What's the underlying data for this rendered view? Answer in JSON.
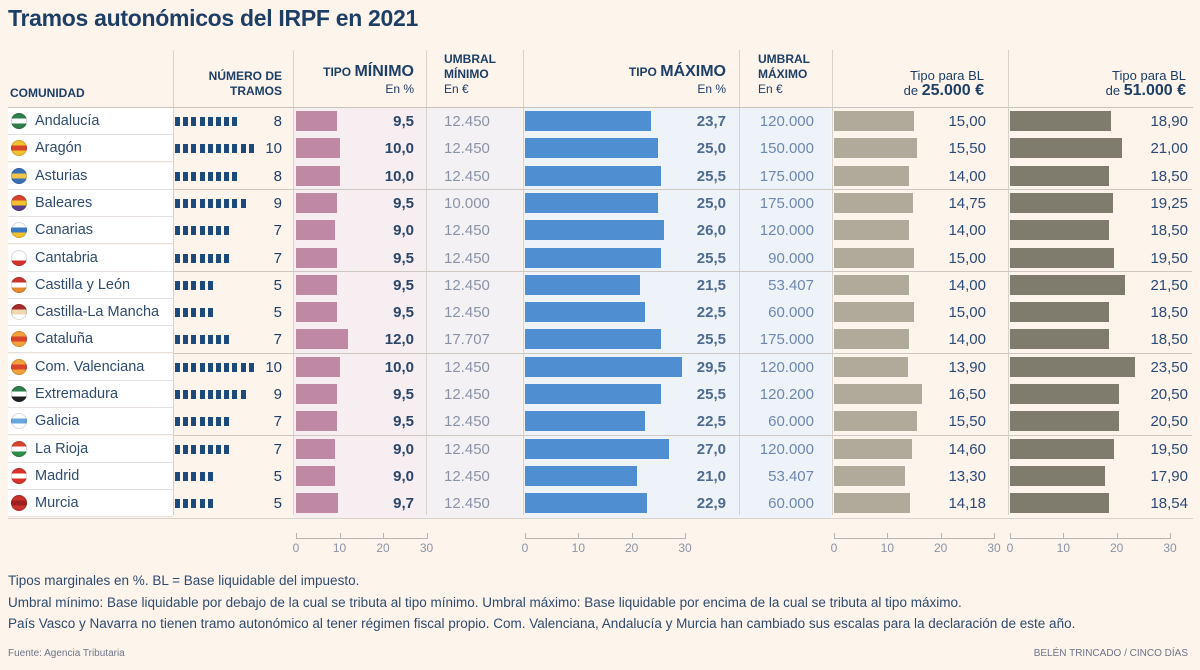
{
  "title": "Tramos autonómicos del IRPF en 2021",
  "headers": {
    "comunidad": "COMUNIDAD",
    "tramos_line1": "NÚMERO DE",
    "tramos_line2": "TRAMOS",
    "tipo_min_small": "TIPO ",
    "tipo_min_big": "MÍNIMO",
    "tipo_min_unit": "En %",
    "umbral_min_line1": "UMBRAL",
    "umbral_min_line2": "MÍNIMO",
    "umbral_min_unit": "En €",
    "tipo_max_small": "TIPO ",
    "tipo_max_big": "MÁXIMO",
    "tipo_max_unit": "En %",
    "umbral_max_line1": "UMBRAL",
    "umbral_max_line2": "MÁXIMO",
    "umbral_max_unit": "En €",
    "bl25_line1": "Tipo para BL",
    "bl25_small": "de ",
    "bl25_big": "25.000 €",
    "bl51_line1": "Tipo para BL",
    "bl51_small": "de ",
    "bl51_big": "51.000 €"
  },
  "colors": {
    "tramos": "#1d4a7c",
    "tipo_min": "#bf89a3",
    "tipo_max": "#4f8ed0",
    "bl25": "#b0aa9b",
    "bl51": "#7f7b6d"
  },
  "chart_data": {
    "type": "table",
    "title": "Tramos autonómicos del IRPF en 2021",
    "columns": [
      "Comunidad",
      "Número de tramos",
      "Tipo mínimo (%)",
      "Umbral mínimo (€)",
      "Tipo máximo (%)",
      "Umbral máximo (€)",
      "Tipo para BL de 25.000 €",
      "Tipo para BL de 51.000 €"
    ],
    "axis_ticks": [
      "0",
      "10",
      "20",
      "30"
    ],
    "axis_range": [
      0,
      30
    ],
    "rows": [
      {
        "comunidad": "Andalucía",
        "flag": "andalucia-flag-icon",
        "tramos": 8,
        "tipo_min": "9,5",
        "tipo_min_v": 9.5,
        "umbral_min": "12.450",
        "tipo_max": "23,7",
        "tipo_max_v": 23.7,
        "umbral_max": "120.000",
        "bl25": "15,00",
        "bl25_v": 15.0,
        "bl51": "18,90",
        "bl51_v": 18.9
      },
      {
        "comunidad": "Aragón",
        "flag": "aragon-flag-icon",
        "tramos": 10,
        "tipo_min": "10,0",
        "tipo_min_v": 10.0,
        "umbral_min": "12.450",
        "tipo_max": "25,0",
        "tipo_max_v": 25.0,
        "umbral_max": "150.000",
        "bl25": "15,50",
        "bl25_v": 15.5,
        "bl51": "21,00",
        "bl51_v": 21.0
      },
      {
        "comunidad": "Asturias",
        "flag": "asturias-flag-icon",
        "tramos": 8,
        "tipo_min": "10,0",
        "tipo_min_v": 10.0,
        "umbral_min": "12.450",
        "tipo_max": "25,5",
        "tipo_max_v": 25.5,
        "umbral_max": "175.000",
        "bl25": "14,00",
        "bl25_v": 14.0,
        "bl51": "18,50",
        "bl51_v": 18.5
      },
      {
        "comunidad": "Baleares",
        "flag": "baleares-flag-icon",
        "tramos": 9,
        "tipo_min": "9,5",
        "tipo_min_v": 9.5,
        "umbral_min": "10.000",
        "tipo_max": "25,0",
        "tipo_max_v": 25.0,
        "umbral_max": "175.000",
        "bl25": "14,75",
        "bl25_v": 14.75,
        "bl51": "19,25",
        "bl51_v": 19.25
      },
      {
        "comunidad": "Canarias",
        "flag": "canarias-flag-icon",
        "tramos": 7,
        "tipo_min": "9,0",
        "tipo_min_v": 9.0,
        "umbral_min": "12.450",
        "tipo_max": "26,0",
        "tipo_max_v": 26.0,
        "umbral_max": "120.000",
        "bl25": "14,00",
        "bl25_v": 14.0,
        "bl51": "18,50",
        "bl51_v": 18.5
      },
      {
        "comunidad": "Cantabria",
        "flag": "cantabria-flag-icon",
        "tramos": 7,
        "tipo_min": "9,5",
        "tipo_min_v": 9.5,
        "umbral_min": "12.450",
        "tipo_max": "25,5",
        "tipo_max_v": 25.5,
        "umbral_max": "90.000",
        "bl25": "15,00",
        "bl25_v": 15.0,
        "bl51": "19,50",
        "bl51_v": 19.5
      },
      {
        "comunidad": "Castilla y León",
        "flag": "castilla-leon-flag-icon",
        "tramos": 5,
        "tipo_min": "9,5",
        "tipo_min_v": 9.5,
        "umbral_min": "12.450",
        "tipo_max": "21,5",
        "tipo_max_v": 21.5,
        "umbral_max": "53.407",
        "bl25": "14,00",
        "bl25_v": 14.0,
        "bl51": "21,50",
        "bl51_v": 21.5
      },
      {
        "comunidad": "Castilla-La Mancha",
        "flag": "castilla-la-mancha-flag-icon",
        "tramos": 5,
        "tipo_min": "9,5",
        "tipo_min_v": 9.5,
        "umbral_min": "12.450",
        "tipo_max": "22,5",
        "tipo_max_v": 22.5,
        "umbral_max": "60.000",
        "bl25": "15,00",
        "bl25_v": 15.0,
        "bl51": "18,50",
        "bl51_v": 18.5
      },
      {
        "comunidad": "Cataluña",
        "flag": "cataluna-flag-icon",
        "tramos": 7,
        "tipo_min": "12,0",
        "tipo_min_v": 12.0,
        "umbral_min": "17.707",
        "tipo_max": "25,5",
        "tipo_max_v": 25.5,
        "umbral_max": "175.000",
        "bl25": "14,00",
        "bl25_v": 14.0,
        "bl51": "18,50",
        "bl51_v": 18.5
      },
      {
        "comunidad": "Com. Valenciana",
        "flag": "valenciana-flag-icon",
        "tramos": 10,
        "tipo_min": "10,0",
        "tipo_min_v": 10.0,
        "umbral_min": "12.450",
        "tipo_max": "29,5",
        "tipo_max_v": 29.5,
        "umbral_max": "120.000",
        "bl25": "13,90",
        "bl25_v": 13.9,
        "bl51": "23,50",
        "bl51_v": 23.5
      },
      {
        "comunidad": "Extremadura",
        "flag": "extremadura-flag-icon",
        "tramos": 9,
        "tipo_min": "9,5",
        "tipo_min_v": 9.5,
        "umbral_min": "12.450",
        "tipo_max": "25,5",
        "tipo_max_v": 25.5,
        "umbral_max": "120.200",
        "bl25": "16,50",
        "bl25_v": 16.5,
        "bl51": "20,50",
        "bl51_v": 20.5
      },
      {
        "comunidad": "Galicia",
        "flag": "galicia-flag-icon",
        "tramos": 7,
        "tipo_min": "9,5",
        "tipo_min_v": 9.5,
        "umbral_min": "12.450",
        "tipo_max": "22,5",
        "tipo_max_v": 22.5,
        "umbral_max": "60.000",
        "bl25": "15,50",
        "bl25_v": 15.5,
        "bl51": "20,50",
        "bl51_v": 20.5
      },
      {
        "comunidad": "La Rioja",
        "flag": "la-rioja-flag-icon",
        "tramos": 7,
        "tipo_min": "9,0",
        "tipo_min_v": 9.0,
        "umbral_min": "12.450",
        "tipo_max": "27,0",
        "tipo_max_v": 27.0,
        "umbral_max": "120.000",
        "bl25": "14,60",
        "bl25_v": 14.6,
        "bl51": "19,50",
        "bl51_v": 19.5
      },
      {
        "comunidad": "Madrid",
        "flag": "madrid-flag-icon",
        "tramos": 5,
        "tipo_min": "9,0",
        "tipo_min_v": 9.0,
        "umbral_min": "12.450",
        "tipo_max": "21,0",
        "tipo_max_v": 21.0,
        "umbral_max": "53.407",
        "bl25": "13,30",
        "bl25_v": 13.3,
        "bl51": "17,90",
        "bl51_v": 17.9
      },
      {
        "comunidad": "Murcia",
        "flag": "murcia-flag-icon",
        "tramos": 5,
        "tipo_min": "9,7",
        "tipo_min_v": 9.7,
        "umbral_min": "12.450",
        "tipo_max": "22,9",
        "tipo_max_v": 22.9,
        "umbral_max": "60.000",
        "bl25": "14,18",
        "bl25_v": 14.18,
        "bl51": "18,54",
        "bl51_v": 18.54
      }
    ]
  },
  "flag_colors": {
    "andalucia-flag-icon": [
      "#2e7d4a",
      "#ffffff",
      "#2e7d4a"
    ],
    "aragon-flag-icon": [
      "#f2c12e",
      "#d8432c",
      "#f2c12e"
    ],
    "asturias-flag-icon": [
      "#3a6fb5",
      "#f1c44c",
      "#3a6fb5"
    ],
    "baleares-flag-icon": [
      "#d8432c",
      "#f2c12e",
      "#5a3d8a"
    ],
    "canarias-flag-icon": [
      "#ffffff",
      "#3a79c6",
      "#f2c12e"
    ],
    "cantabria-flag-icon": [
      "#ffffff",
      "#ffffff",
      "#d8312c"
    ],
    "castilla-leon-flag-icon": [
      "#c8352f",
      "#ffffff",
      "#e68a2e"
    ],
    "castilla-la-mancha-flag-icon": [
      "#a82a2a",
      "#f0d8b0",
      "#ffffff"
    ],
    "cataluna-flag-icon": [
      "#f2a23a",
      "#d8432c",
      "#f2a23a"
    ],
    "valenciana-flag-icon": [
      "#f2a23a",
      "#d8432c",
      "#f2a23a"
    ],
    "extremadura-flag-icon": [
      "#2e7d4a",
      "#ffffff",
      "#222222"
    ],
    "galicia-flag-icon": [
      "#ffffff",
      "#6aa6de",
      "#ffffff"
    ],
    "la-rioja-flag-icon": [
      "#d8432c",
      "#ffffff",
      "#2e8d4a"
    ],
    "madrid-flag-icon": [
      "#d8312c",
      "#ffffff",
      "#d8312c"
    ],
    "murcia-flag-icon": [
      "#c8312c",
      "#a02020",
      "#c8312c"
    ]
  },
  "notes": [
    "Tipos marginales en %. BL = Base liquidable del impuesto.",
    "Umbral mínimo: Base liquidable por debajo de la cual se tributa al tipo mínimo. Umbral máximo: Base liquidable por encima de la cual se tributa al tipo máximo.",
    "País Vasco y Navarra no tienen tramo autonómico al tener régimen fiscal propio. Com. Valenciana, Andalucía y Murcia han cambiado sus escalas para la declaración de este año."
  ],
  "source": "Fuente: Agencia Tributaria",
  "credit": "BELÉN TRINCADO / CINCO DÍAS"
}
